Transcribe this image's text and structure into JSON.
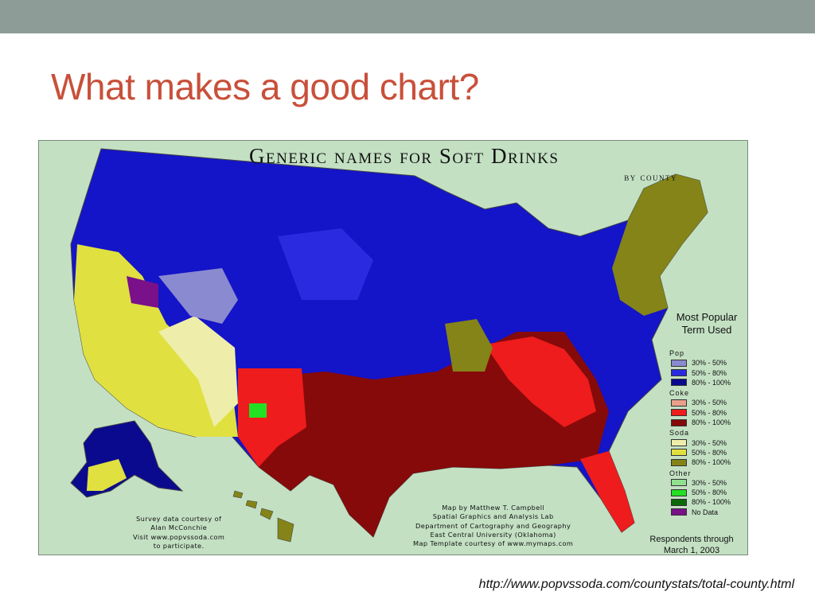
{
  "slide": {
    "title": "What makes a good chart?",
    "source_url": "http://www.popvssoda.com/countystats/total-county.html"
  },
  "map": {
    "title": "Generic names for Soft Drinks",
    "subtitle": "by county",
    "legend": {
      "heading_line1": "Most Popular",
      "heading_line2": "Term Used",
      "groups": [
        {
          "label": "Pop",
          "items": [
            {
              "range": "30% - 50%",
              "color": "#8a8ad0"
            },
            {
              "range": "50% - 80%",
              "color": "#2a2ae0"
            },
            {
              "range": "80% - 100%",
              "color": "#0a0a8e"
            }
          ]
        },
        {
          "label": "Coke",
          "items": [
            {
              "range": "30% - 50%",
              "color": "#e8a088"
            },
            {
              "range": "50% - 80%",
              "color": "#ee1c1c"
            },
            {
              "range": "80% - 100%",
              "color": "#860a0a"
            }
          ]
        },
        {
          "label": "Soda",
          "items": [
            {
              "range": "30% - 50%",
              "color": "#eeeeaa"
            },
            {
              "range": "50% - 80%",
              "color": "#e0e040"
            },
            {
              "range": "80% - 100%",
              "color": "#848418"
            }
          ]
        },
        {
          "label": "Other",
          "items": [
            {
              "range": "30% - 50%",
              "color": "#90e090"
            },
            {
              "range": "50% - 80%",
              "color": "#22e022"
            },
            {
              "range": "80% - 100%",
              "color": "#0a6a0a"
            },
            {
              "range": "No Data",
              "color": "#7a108a"
            }
          ]
        }
      ]
    },
    "survey_credit": [
      "Survey data courtesy of",
      "Alan McConchie",
      "Visit www.popvssoda.com",
      "to participate."
    ],
    "map_credit": [
      "Map by Matthew T. Campbell",
      "Spatial Graphics and Analysis Lab",
      "Department of Cartography and Geography",
      "East Central University (Oklahoma)",
      "Map Template courtesy of www.mymaps.com"
    ],
    "respondents": [
      "Respondents through",
      "March 1, 2003"
    ]
  }
}
